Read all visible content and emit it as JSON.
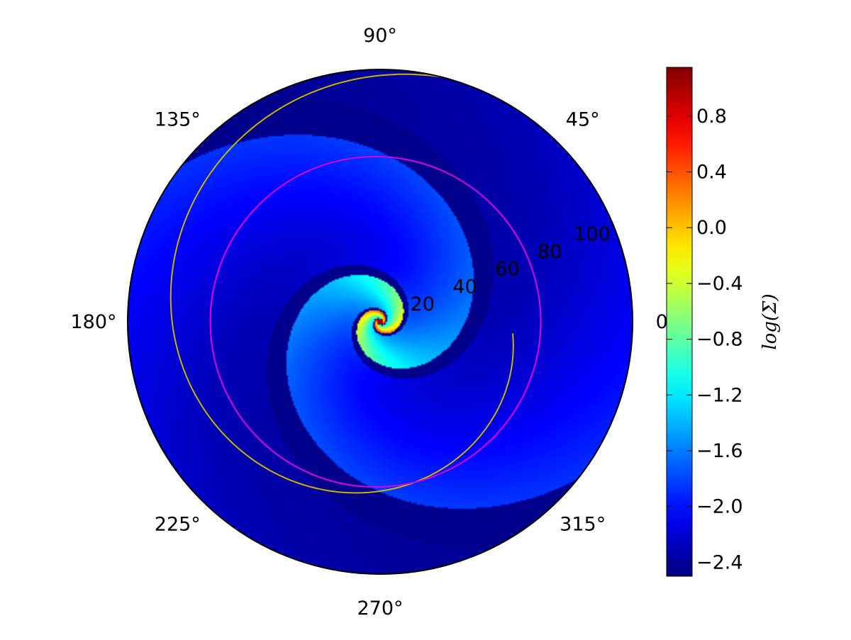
{
  "chart_data": {
    "type": "heatmap",
    "projection": "polar",
    "title": "",
    "colormap": "jet",
    "colorbar": {
      "label": "log(Σ)",
      "vmin": -2.5,
      "vmax": 1.15,
      "ticks": [
        -2.4,
        -2.0,
        -1.6,
        -1.2,
        -0.8,
        -0.4,
        0.0,
        0.4,
        0.8
      ],
      "tick_labels": [
        "−2.4",
        "−2.0",
        "−1.6",
        "−1.2",
        "−0.8",
        "−0.4",
        "0.0",
        "0.4",
        "0.8"
      ]
    },
    "angle_ticks": {
      "values": [
        0,
        45,
        90,
        135,
        180,
        225,
        270,
        315
      ],
      "labels": [
        "0°",
        "45°",
        "90°",
        "135°",
        "180°",
        "225°",
        "270°",
        "315°"
      ]
    },
    "radial_ticks": {
      "values": [
        20,
        40,
        60,
        80,
        100
      ],
      "labels": [
        "20",
        "40",
        "60",
        "80",
        "100"
      ],
      "label_angle_deg": 22.5
    },
    "rlim": [
      0,
      110
    ],
    "grid": false,
    "spiral_pattern": {
      "arms": 2,
      "peak_log_sigma": 1.1,
      "background_log_sigma": -2.45
    },
    "overlays": [
      {
        "name": "",
        "color": "#c8b400",
        "kind": "spiral",
        "r_start": 110,
        "r_end": 58,
        "theta_start_deg": 76,
        "theta_end_deg": 355
      },
      {
        "name": "",
        "color": "#e000e0",
        "kind": "circle",
        "center_x": -2,
        "center_y": 0,
        "radius": 72
      }
    ]
  }
}
